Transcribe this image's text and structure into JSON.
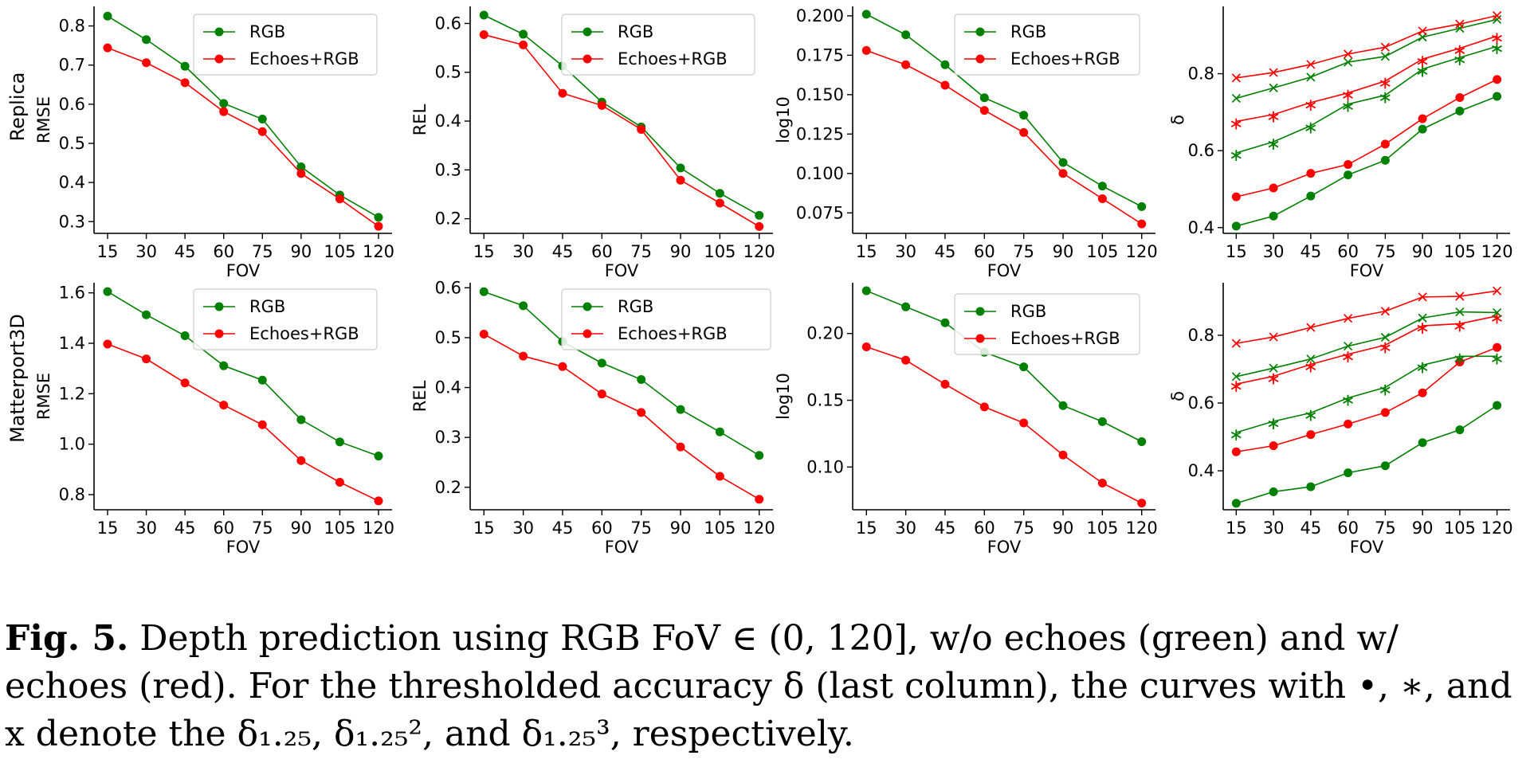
{
  "colors": {
    "rgb": "#008000",
    "echoes": "#ff0000",
    "axis": "#000000"
  },
  "row_labels": [
    "Replica",
    "Matterport3D"
  ],
  "chart_data": [
    {
      "type": "line",
      "row": 0,
      "col": 0,
      "x": [
        15,
        30,
        45,
        60,
        75,
        90,
        105,
        120
      ],
      "xlabel": "FOV",
      "ylabel": "RMSE",
      "ylim": [
        0.27,
        0.85
      ],
      "yticks": [
        0.3,
        0.4,
        0.5,
        0.6,
        0.7,
        0.8
      ],
      "yticklabels": [
        "0.3",
        "0.4",
        "0.5",
        "0.6",
        "0.7",
        "0.8"
      ],
      "grid": false,
      "legend": "top-right",
      "series": [
        {
          "name": "RGB",
          "color": "#008000",
          "marker": "circle",
          "values": [
            0.825,
            0.765,
            0.697,
            0.602,
            0.562,
            0.44,
            0.368,
            0.311
          ]
        },
        {
          "name": "Echoes+RGB",
          "color": "#ff0000",
          "marker": "circle",
          "values": [
            0.744,
            0.706,
            0.655,
            0.581,
            0.53,
            0.423,
            0.358,
            0.288
          ]
        }
      ]
    },
    {
      "type": "line",
      "row": 0,
      "col": 1,
      "x": [
        15,
        30,
        45,
        60,
        75,
        90,
        105,
        120
      ],
      "xlabel": "FOV",
      "ylabel": "REL",
      "ylim": [
        0.17,
        0.635
      ],
      "yticks": [
        0.2,
        0.3,
        0.4,
        0.5,
        0.6
      ],
      "yticklabels": [
        "0.2",
        "0.3",
        "0.4",
        "0.5",
        "0.6"
      ],
      "grid": false,
      "legend": "top-right",
      "series": [
        {
          "name": "RGB",
          "color": "#008000",
          "marker": "circle",
          "values": [
            0.617,
            0.578,
            0.513,
            0.439,
            0.388,
            0.304,
            0.252,
            0.207
          ]
        },
        {
          "name": "Echoes+RGB",
          "color": "#ff0000",
          "marker": "circle",
          "values": [
            0.577,
            0.556,
            0.457,
            0.432,
            0.383,
            0.279,
            0.232,
            0.184
          ]
        }
      ]
    },
    {
      "type": "line",
      "row": 0,
      "col": 2,
      "x": [
        15,
        30,
        45,
        60,
        75,
        90,
        105,
        120
      ],
      "xlabel": "FOV",
      "ylabel": "log10",
      "ylim": [
        0.062,
        0.206
      ],
      "yticks": [
        0.075,
        0.1,
        0.125,
        0.15,
        0.175,
        0.2
      ],
      "yticklabels": [
        "0.075",
        "0.100",
        "0.125",
        "0.150",
        "0.175",
        "0.200"
      ],
      "grid": false,
      "legend": "top-right",
      "series": [
        {
          "name": "RGB",
          "color": "#008000",
          "marker": "circle",
          "values": [
            0.201,
            0.188,
            0.169,
            0.148,
            0.137,
            0.107,
            0.092,
            0.079
          ]
        },
        {
          "name": "Echoes+RGB",
          "color": "#ff0000",
          "marker": "circle",
          "values": [
            0.178,
            0.169,
            0.156,
            0.14,
            0.126,
            0.1,
            0.084,
            0.068
          ]
        }
      ]
    },
    {
      "type": "line",
      "row": 0,
      "col": 3,
      "x": [
        15,
        30,
        45,
        60,
        75,
        90,
        105,
        120
      ],
      "xlabel": "FOV",
      "ylabel": "δ",
      "ylim": [
        0.385,
        0.975
      ],
      "yticks": [
        0.4,
        0.6,
        0.8
      ],
      "yticklabels": [
        "0.4",
        "0.6",
        "0.8"
      ],
      "grid": false,
      "legend": "none",
      "series": [
        {
          "color": "#008000",
          "marker": "circle",
          "values": [
            0.404,
            0.43,
            0.482,
            0.537,
            0.575,
            0.656,
            0.703,
            0.741
          ]
        },
        {
          "color": "#ff0000",
          "marker": "circle",
          "values": [
            0.48,
            0.503,
            0.541,
            0.564,
            0.617,
            0.683,
            0.738,
            0.785
          ]
        },
        {
          "color": "#008000",
          "marker": "star",
          "values": [
            0.594,
            0.623,
            0.665,
            0.721,
            0.744,
            0.812,
            0.842,
            0.871
          ]
        },
        {
          "color": "#ff0000",
          "marker": "star",
          "values": [
            0.676,
            0.694,
            0.725,
            0.75,
            0.781,
            0.838,
            0.866,
            0.898
          ]
        },
        {
          "color": "#008000",
          "marker": "x",
          "values": [
            0.736,
            0.763,
            0.791,
            0.83,
            0.845,
            0.895,
            0.918,
            0.941
          ]
        },
        {
          "color": "#ff0000",
          "marker": "x",
          "values": [
            0.789,
            0.803,
            0.824,
            0.851,
            0.869,
            0.911,
            0.929,
            0.951
          ]
        }
      ]
    },
    {
      "type": "line",
      "row": 1,
      "col": 0,
      "x": [
        15,
        30,
        45,
        60,
        75,
        90,
        105,
        120
      ],
      "xlabel": "FOV",
      "ylabel": "RMSE",
      "ylim": [
        0.74,
        1.64
      ],
      "yticks": [
        0.8,
        1.0,
        1.2,
        1.4,
        1.6
      ],
      "yticklabels": [
        "0.8",
        "1.0",
        "1.2",
        "1.4",
        "1.6"
      ],
      "grid": false,
      "legend": "top-right",
      "series": [
        {
          "name": "RGB",
          "color": "#008000",
          "marker": "circle",
          "values": [
            1.605,
            1.513,
            1.43,
            1.311,
            1.254,
            1.097,
            1.009,
            0.953
          ]
        },
        {
          "name": "Echoes+RGB",
          "color": "#ff0000",
          "marker": "circle",
          "values": [
            1.397,
            1.338,
            1.243,
            1.155,
            1.077,
            0.935,
            0.849,
            0.775
          ]
        }
      ]
    },
    {
      "type": "line",
      "row": 1,
      "col": 1,
      "x": [
        15,
        30,
        45,
        60,
        75,
        90,
        105,
        120
      ],
      "xlabel": "FOV",
      "ylabel": "REL",
      "ylim": [
        0.155,
        0.61
      ],
      "yticks": [
        0.2,
        0.3,
        0.4,
        0.5,
        0.6
      ],
      "yticklabels": [
        "0.2",
        "0.3",
        "0.4",
        "0.5",
        "0.6"
      ],
      "grid": false,
      "legend": "top-right",
      "series": [
        {
          "name": "RGB",
          "color": "#008000",
          "marker": "circle",
          "values": [
            0.592,
            0.564,
            0.492,
            0.449,
            0.416,
            0.356,
            0.311,
            0.264
          ]
        },
        {
          "name": "Echoes+RGB",
          "color": "#ff0000",
          "marker": "circle",
          "values": [
            0.507,
            0.463,
            0.442,
            0.387,
            0.35,
            0.281,
            0.222,
            0.176
          ]
        }
      ]
    },
    {
      "type": "line",
      "row": 1,
      "col": 2,
      "x": [
        15,
        30,
        45,
        60,
        75,
        90,
        105,
        120
      ],
      "xlabel": "FOV",
      "ylabel": "log10",
      "ylim": [
        0.068,
        0.238
      ],
      "yticks": [
        0.1,
        0.15,
        0.2
      ],
      "yticklabels": [
        "0.10",
        "0.15",
        "0.20"
      ],
      "grid": false,
      "legend": "top-right",
      "series": [
        {
          "name": "RGB",
          "color": "#008000",
          "marker": "circle",
          "values": [
            0.232,
            0.22,
            0.208,
            0.186,
            0.175,
            0.146,
            0.134,
            0.119
          ]
        },
        {
          "name": "Echoes+RGB",
          "color": "#ff0000",
          "marker": "circle",
          "values": [
            0.19,
            0.18,
            0.162,
            0.145,
            0.133,
            0.109,
            0.088,
            0.073
          ]
        }
      ]
    },
    {
      "type": "line",
      "row": 1,
      "col": 3,
      "x": [
        15,
        30,
        45,
        60,
        75,
        90,
        105,
        120
      ],
      "xlabel": "FOV",
      "ylabel": "δ",
      "ylim": [
        0.285,
        0.955
      ],
      "yticks": [
        0.4,
        0.6,
        0.8
      ],
      "yticklabels": [
        "0.4",
        "0.6",
        "0.8"
      ],
      "grid": false,
      "legend": "none",
      "series": [
        {
          "color": "#008000",
          "marker": "circle",
          "values": [
            0.304,
            0.338,
            0.353,
            0.394,
            0.415,
            0.483,
            0.521,
            0.593
          ]
        },
        {
          "color": "#ff0000",
          "marker": "circle",
          "values": [
            0.456,
            0.474,
            0.507,
            0.538,
            0.572,
            0.63,
            0.721,
            0.764
          ]
        },
        {
          "color": "#008000",
          "marker": "star",
          "values": [
            0.513,
            0.546,
            0.571,
            0.615,
            0.646,
            0.712,
            0.738,
            0.738
          ]
        },
        {
          "color": "#ff0000",
          "marker": "star",
          "values": [
            0.656,
            0.679,
            0.714,
            0.744,
            0.771,
            0.828,
            0.834,
            0.857
          ]
        },
        {
          "color": "#008000",
          "marker": "x",
          "values": [
            0.678,
            0.703,
            0.73,
            0.768,
            0.794,
            0.851,
            0.869,
            0.867
          ]
        },
        {
          "color": "#ff0000",
          "marker": "x",
          "values": [
            0.776,
            0.795,
            0.823,
            0.85,
            0.871,
            0.913,
            0.915,
            0.931
          ]
        }
      ]
    }
  ],
  "caption": {
    "label": "Fig. 5.",
    "text": " Depth prediction using RGB FoV ∈ (0, 120], w/o echoes (green) and w/ echoes (red). For the thresholded accuracy δ (last column), the curves with •, ∗, and x denote the δ₁.₂₅, δ₁.₂₅², and δ₁.₂₅³, respectively."
  }
}
